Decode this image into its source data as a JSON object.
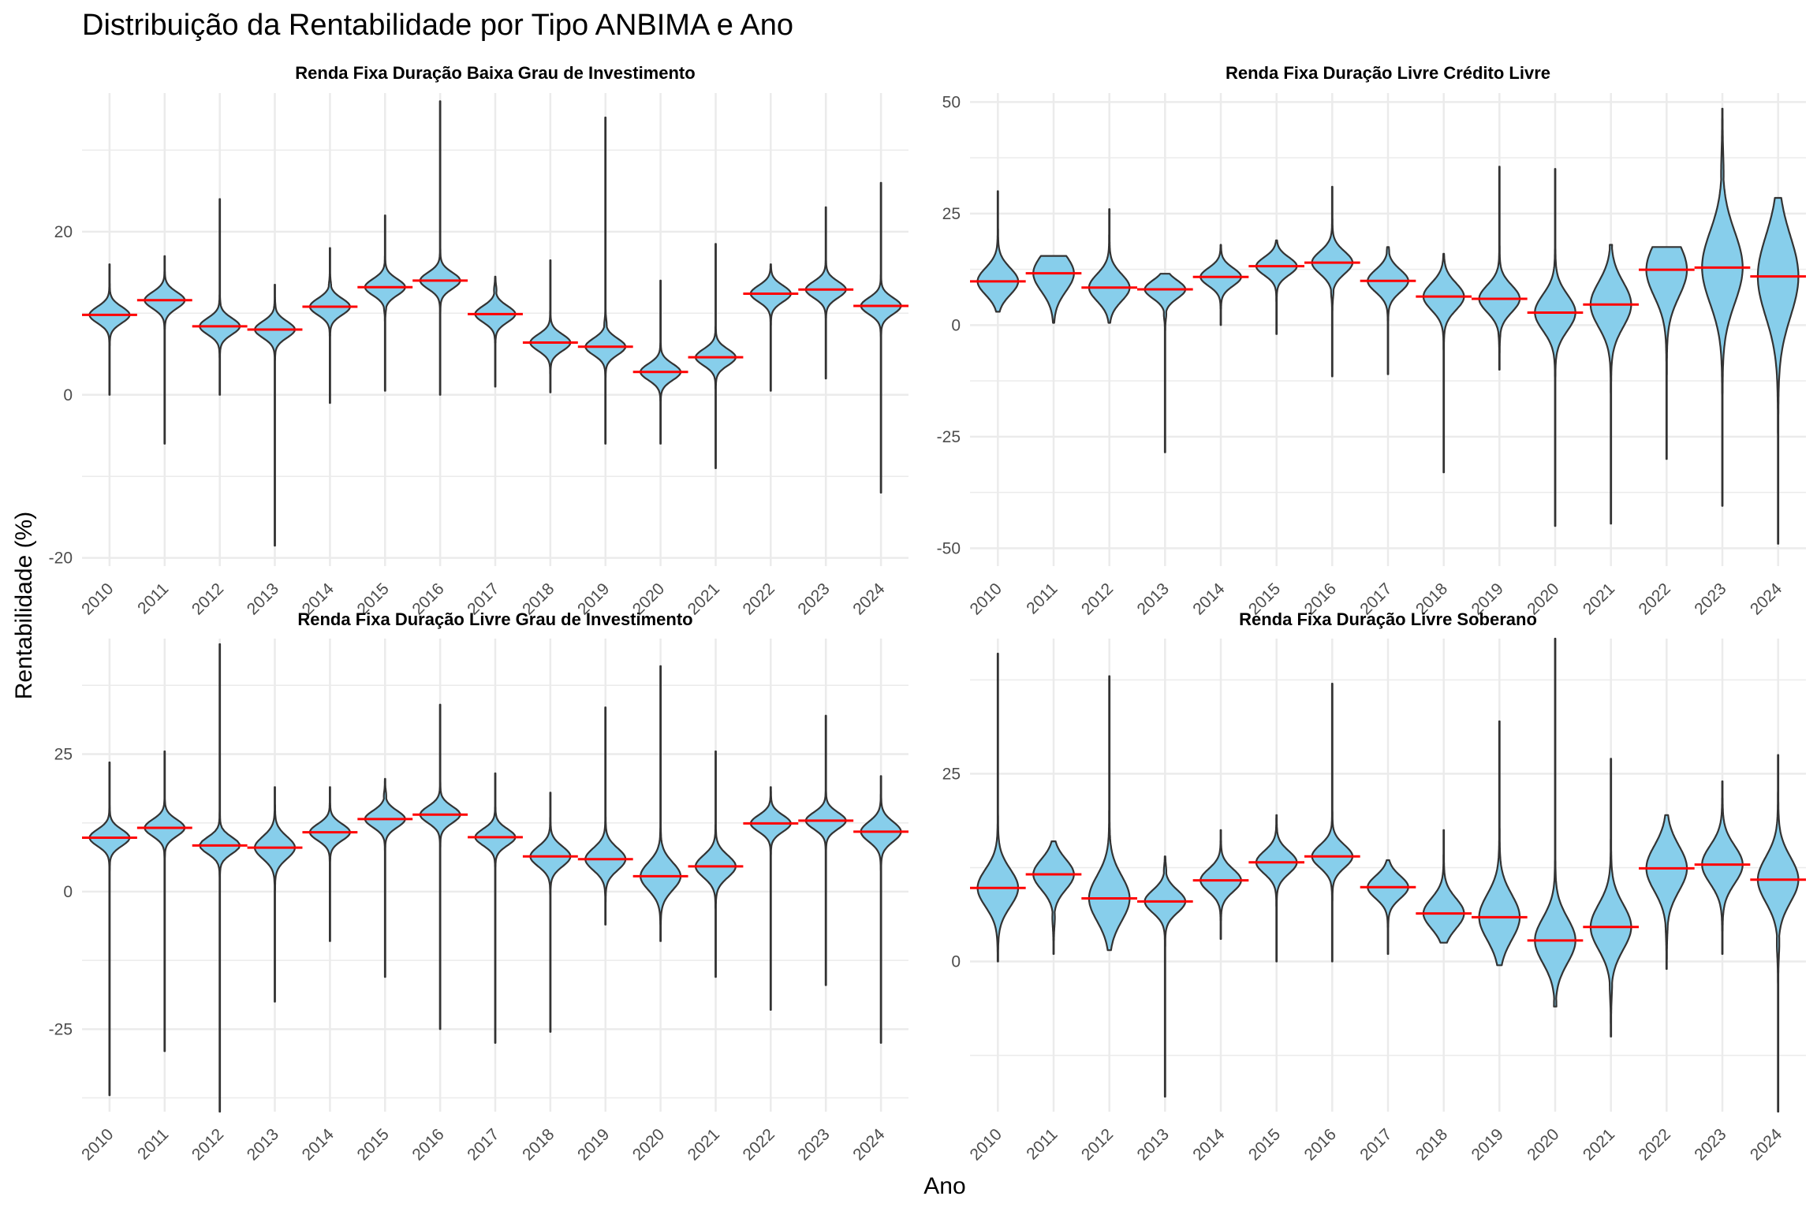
{
  "title": "Distribuição da Rentabilidade por Tipo ANBIMA e Ano",
  "xlabel": "Ano",
  "ylabel": "Rentabilidade (%)",
  "colors": {
    "violin_fill": "#87CEEB",
    "violin_stroke": "#333333",
    "mean_line": "#FF0000",
    "grid": "#EBEBEB"
  },
  "chart_data": {
    "type": "violin",
    "years": [
      "2010",
      "2011",
      "2012",
      "2013",
      "2014",
      "2015",
      "2016",
      "2017",
      "2018",
      "2019",
      "2020",
      "2021",
      "2022",
      "2023",
      "2024"
    ],
    "panels": [
      {
        "title": "Renda Fixa Duração Baixa Grau de Investimento",
        "ylim": [
          -21,
          37
        ],
        "yticks": [
          -20,
          0,
          20
        ],
        "ytick_labels": [
          "-20",
          "0",
          "20"
        ],
        "series": [
          {
            "year": "2010",
            "min": 0,
            "max": 16,
            "center": 9.8,
            "mean": 9.8,
            "spread": 1.0
          },
          {
            "year": "2011",
            "min": -6,
            "max": 17,
            "center": 11.6,
            "mean": 11.6,
            "spread": 1.0
          },
          {
            "year": "2012",
            "min": 0,
            "max": 24,
            "center": 8.4,
            "mean": 8.4,
            "spread": 1.0
          },
          {
            "year": "2013",
            "min": -18.5,
            "max": 13.5,
            "center": 8.0,
            "mean": 8.0,
            "spread": 1.0
          },
          {
            "year": "2014",
            "min": -1,
            "max": 18,
            "center": 10.8,
            "mean": 10.8,
            "spread": 1.0
          },
          {
            "year": "2015",
            "min": 0.5,
            "max": 22,
            "center": 13.2,
            "mean": 13.2,
            "spread": 1.0
          },
          {
            "year": "2016",
            "min": 0,
            "max": 36,
            "center": 14.0,
            "mean": 14.0,
            "spread": 1.0
          },
          {
            "year": "2017",
            "min": 1,
            "max": 14.5,
            "center": 9.9,
            "mean": 9.9,
            "spread": 1.0
          },
          {
            "year": "2018",
            "min": 0.3,
            "max": 16.5,
            "center": 6.4,
            "mean": 6.4,
            "spread": 1.0
          },
          {
            "year": "2019",
            "min": -6,
            "max": 34,
            "center": 5.9,
            "mean": 5.9,
            "spread": 1.0
          },
          {
            "year": "2020",
            "min": -6,
            "max": 14,
            "center": 2.8,
            "mean": 2.8,
            "spread": 1.0
          },
          {
            "year": "2021",
            "min": -9,
            "max": 18.5,
            "center": 4.6,
            "mean": 4.6,
            "spread": 1.0
          },
          {
            "year": "2022",
            "min": 0.5,
            "max": 16,
            "center": 12.4,
            "mean": 12.4,
            "spread": 1.0
          },
          {
            "year": "2023",
            "min": 2,
            "max": 23,
            "center": 12.9,
            "mean": 12.9,
            "spread": 1.0
          },
          {
            "year": "2024",
            "min": -12,
            "max": 26,
            "center": 10.9,
            "mean": 10.9,
            "spread": 1.0
          }
        ]
      },
      {
        "title": "Renda Fixa Duração Livre Crédito Livre",
        "ylim": [
          -54,
          52
        ],
        "yticks": [
          -50,
          -25,
          0,
          25,
          50
        ],
        "ytick_labels": [
          "-50",
          "-25",
          "0",
          "25",
          "50"
        ],
        "series": [
          {
            "year": "2010",
            "min": 3,
            "max": 30,
            "center": 9.8,
            "mean": 9.8,
            "spread": 3.0
          },
          {
            "year": "2011",
            "min": 0.5,
            "max": 15.5,
            "center": 11.6,
            "mean": 11.6,
            "spread": 4.0
          },
          {
            "year": "2012",
            "min": 0.5,
            "max": 26,
            "center": 8.4,
            "mean": 8.4,
            "spread": 3.0
          },
          {
            "year": "2013",
            "min": -28.5,
            "max": 11.5,
            "center": 8.0,
            "mean": 8.0,
            "spread": 2.0
          },
          {
            "year": "2014",
            "min": 0,
            "max": 18,
            "center": 10.8,
            "mean": 10.8,
            "spread": 2.0
          },
          {
            "year": "2015",
            "min": -2,
            "max": 19,
            "center": 13.2,
            "mean": 13.2,
            "spread": 2.0
          },
          {
            "year": "2016",
            "min": -11.5,
            "max": 31,
            "center": 14.0,
            "mean": 14.0,
            "spread": 2.5
          },
          {
            "year": "2017",
            "min": -11,
            "max": 17.5,
            "center": 9.9,
            "mean": 9.9,
            "spread": 2.5
          },
          {
            "year": "2018",
            "min": -33,
            "max": 16,
            "center": 6.4,
            "mean": 6.4,
            "spread": 3.0
          },
          {
            "year": "2019",
            "min": -10,
            "max": 35.5,
            "center": 5.9,
            "mean": 5.9,
            "spread": 3.0
          },
          {
            "year": "2020",
            "min": -45,
            "max": 35,
            "center": 2.8,
            "mean": 2.8,
            "spread": 4.0
          },
          {
            "year": "2021",
            "min": -44.5,
            "max": 18,
            "center": 4.6,
            "mean": 4.6,
            "spread": 5.0
          },
          {
            "year": "2022",
            "min": -30,
            "max": 17.5,
            "center": 12.4,
            "mean": 12.4,
            "spread": 6.0
          },
          {
            "year": "2023",
            "min": -40.5,
            "max": 48.5,
            "center": 12.9,
            "mean": 12.9,
            "spread": 8.0
          },
          {
            "year": "2024",
            "min": -49,
            "max": 28.5,
            "center": 10.9,
            "mean": 10.9,
            "spread": 9.0
          }
        ]
      },
      {
        "title": "Renda Fixa Duração Livre Grau de Investimento",
        "ylim": [
          -40,
          46
        ],
        "yticks": [
          -25,
          0,
          25
        ],
        "ytick_labels": [
          "-25",
          "0",
          "25"
        ],
        "series": [
          {
            "year": "2010",
            "min": -37,
            "max": 23.5,
            "center": 9.8,
            "mean": 9.8,
            "spread": 1.5
          },
          {
            "year": "2011",
            "min": -29,
            "max": 25.5,
            "center": 11.6,
            "mean": 11.6,
            "spread": 1.5
          },
          {
            "year": "2012",
            "min": -40,
            "max": 45,
            "center": 8.4,
            "mean": 8.4,
            "spread": 1.5
          },
          {
            "year": "2013",
            "min": -20,
            "max": 19,
            "center": 8.0,
            "mean": 8.0,
            "spread": 2.0
          },
          {
            "year": "2014",
            "min": -9,
            "max": 19,
            "center": 10.8,
            "mean": 10.8,
            "spread": 1.5
          },
          {
            "year": "2015",
            "min": -15.5,
            "max": 20.5,
            "center": 13.2,
            "mean": 13.2,
            "spread": 1.5
          },
          {
            "year": "2016",
            "min": -25,
            "max": 34,
            "center": 14.0,
            "mean": 14.0,
            "spread": 1.5
          },
          {
            "year": "2017",
            "min": -27.5,
            "max": 21.5,
            "center": 9.9,
            "mean": 9.9,
            "spread": 1.5
          },
          {
            "year": "2018",
            "min": -25.5,
            "max": 18,
            "center": 6.4,
            "mean": 6.4,
            "spread": 1.8
          },
          {
            "year": "2019",
            "min": -6,
            "max": 33.5,
            "center": 5.9,
            "mean": 5.9,
            "spread": 2.0
          },
          {
            "year": "2020",
            "min": -9,
            "max": 41,
            "center": 2.8,
            "mean": 2.8,
            "spread": 2.5
          },
          {
            "year": "2021",
            "min": -15.5,
            "max": 25.5,
            "center": 4.6,
            "mean": 4.6,
            "spread": 2.0
          },
          {
            "year": "2022",
            "min": -21.5,
            "max": 19,
            "center": 12.4,
            "mean": 12.4,
            "spread": 1.5
          },
          {
            "year": "2023",
            "min": -17,
            "max": 32,
            "center": 12.9,
            "mean": 12.9,
            "spread": 1.5
          },
          {
            "year": "2024",
            "min": -27.5,
            "max": 21,
            "center": 10.9,
            "mean": 10.9,
            "spread": 1.8
          }
        ]
      },
      {
        "title": "Renda Fixa Duração Livre Soberano",
        "ylim": [
          -20,
          43
        ],
        "yticks": [
          0,
          25
        ],
        "ytick_labels": [
          "0",
          "25"
        ],
        "series": [
          {
            "year": "2010",
            "min": 0,
            "max": 41,
            "center": 9.8,
            "mean": 9.8,
            "spread": 2.5
          },
          {
            "year": "2011",
            "min": 1,
            "max": 16,
            "center": 11.6,
            "mean": 11.6,
            "spread": 2.0
          },
          {
            "year": "2012",
            "min": 1.5,
            "max": 38,
            "center": 8.4,
            "mean": 8.4,
            "spread": 3.0
          },
          {
            "year": "2013",
            "min": -18,
            "max": 14,
            "center": 8.0,
            "mean": 8.0,
            "spread": 1.5
          },
          {
            "year": "2014",
            "min": 3,
            "max": 17.5,
            "center": 10.8,
            "mean": 10.8,
            "spread": 1.5
          },
          {
            "year": "2015",
            "min": 0,
            "max": 19.5,
            "center": 13.2,
            "mean": 13.2,
            "spread": 1.5
          },
          {
            "year": "2016",
            "min": 0,
            "max": 37,
            "center": 14.0,
            "mean": 14.0,
            "spread": 1.5
          },
          {
            "year": "2017",
            "min": 1,
            "max": 13.5,
            "center": 9.9,
            "mean": 9.9,
            "spread": 1.5
          },
          {
            "year": "2018",
            "min": 2.5,
            "max": 17.5,
            "center": 6.4,
            "mean": 6.4,
            "spread": 2.0
          },
          {
            "year": "2019",
            "min": -0.5,
            "max": 32,
            "center": 5.9,
            "mean": 5.9,
            "spread": 3.0
          },
          {
            "year": "2020",
            "min": -6,
            "max": 43,
            "center": 2.8,
            "mean": 2.8,
            "spread": 3.0
          },
          {
            "year": "2021",
            "min": -10,
            "max": 27,
            "center": 4.6,
            "mean": 4.6,
            "spread": 3.0
          },
          {
            "year": "2022",
            "min": -1,
            "max": 19.5,
            "center": 12.4,
            "mean": 12.4,
            "spread": 3.0
          },
          {
            "year": "2023",
            "min": 1,
            "max": 24,
            "center": 12.9,
            "mean": 12.9,
            "spread": 2.5
          },
          {
            "year": "2024",
            "min": -20,
            "max": 27.5,
            "center": 10.9,
            "mean": 10.9,
            "spread": 3.0
          }
        ]
      }
    ]
  }
}
